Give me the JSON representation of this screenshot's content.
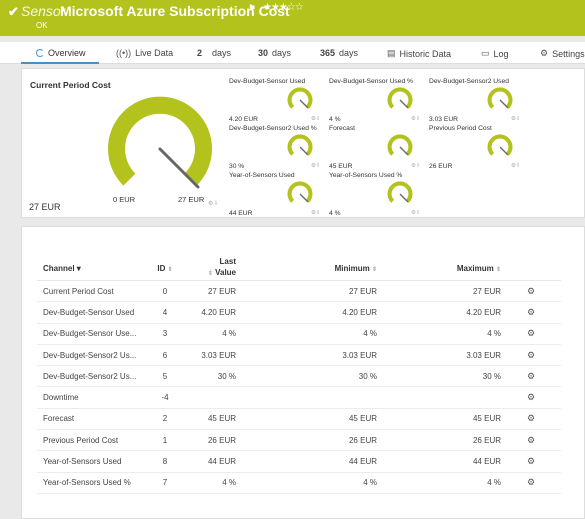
{
  "header": {
    "sensor_word": "Sensor",
    "title": "Microsoft Azure Subscription Cost",
    "status": "OK",
    "stars": "★★★☆☆",
    "bg_color": "#b3c21c"
  },
  "tabs": [
    {
      "label": "Overview",
      "icon": "overview-spinner-icon"
    },
    {
      "label": "Live Data",
      "icon": "live-data-icon"
    },
    {
      "num": "2",
      "label": "days"
    },
    {
      "num": "30",
      "label": "days"
    },
    {
      "num": "365",
      "label": "days"
    },
    {
      "label": "Historic Data",
      "icon": "historic-data-icon"
    },
    {
      "label": "Log",
      "icon": "log-icon"
    },
    {
      "label": "Settings",
      "icon": "gear-icon"
    }
  ],
  "overview": {
    "primary": {
      "title": "Current Period Cost",
      "value": "27 EUR",
      "min_label": "0 EUR",
      "max_label": "27 EUR",
      "fraction": 1.0
    },
    "gauges": [
      {
        "label": "Dev-Budget-Sensor Used",
        "value": "4.20 EUR",
        "fraction": 1.0
      },
      {
        "label": "Dev-Budget-Sensor Used %",
        "value": "4 %",
        "fraction": 1.0
      },
      {
        "label": "Dev-Budget-Sensor2 Used",
        "value": "3.03 EUR",
        "fraction": 1.0
      },
      {
        "label": "Dev-Budget-Sensor2 Used %",
        "value": "30 %",
        "fraction": 1.0
      },
      {
        "label": "Forecast",
        "value": "45 EUR",
        "fraction": 1.0
      },
      {
        "label": "Previous Period Cost",
        "value": "26 EUR",
        "fraction": 1.0
      },
      {
        "label": "Year-of-Sensors Used",
        "value": "44 EUR",
        "fraction": 1.0
      },
      {
        "label": "Year-of-Sensors Used %",
        "value": "4 %",
        "fraction": 1.0
      }
    ]
  },
  "table": {
    "headers": {
      "channel": "Channel",
      "id": "ID",
      "last_line1": "Last",
      "last_line2": "Value",
      "minimum": "Minimum",
      "maximum": "Maximum"
    },
    "rows": [
      {
        "channel": "Current Period Cost",
        "id": "0",
        "last": "27 EUR",
        "min": "27 EUR",
        "max": "27 EUR"
      },
      {
        "channel": "Dev-Budget-Sensor Used",
        "id": "4",
        "last": "4.20 EUR",
        "min": "4.20 EUR",
        "max": "4.20 EUR"
      },
      {
        "channel": "Dev-Budget-Sensor Use...",
        "id": "3",
        "last": "4 %",
        "min": "4 %",
        "max": "4 %"
      },
      {
        "channel": "Dev-Budget-Sensor2 Us...",
        "id": "6",
        "last": "3.03 EUR",
        "min": "3.03 EUR",
        "max": "3.03 EUR"
      },
      {
        "channel": "Dev-Budget-Sensor2 Us...",
        "id": "5",
        "last": "30 %",
        "min": "30 %",
        "max": "30 %"
      },
      {
        "channel": "Downtime",
        "id": "-4",
        "last": "",
        "min": "",
        "max": ""
      },
      {
        "channel": "Forecast",
        "id": "2",
        "last": "45 EUR",
        "min": "45 EUR",
        "max": "45 EUR"
      },
      {
        "channel": "Previous Period Cost",
        "id": "1",
        "last": "26 EUR",
        "min": "26 EUR",
        "max": "26 EUR"
      },
      {
        "channel": "Year-of-Sensors Used",
        "id": "8",
        "last": "44 EUR",
        "min": "44 EUR",
        "max": "44 EUR"
      },
      {
        "channel": "Year-of-Sensors Used %",
        "id": "7",
        "last": "4 %",
        "min": "4 %",
        "max": "4 %"
      }
    ]
  },
  "colors": {
    "gauge": "#b3c21c",
    "needle": "#666666",
    "active_tab": "#4a90c2"
  }
}
